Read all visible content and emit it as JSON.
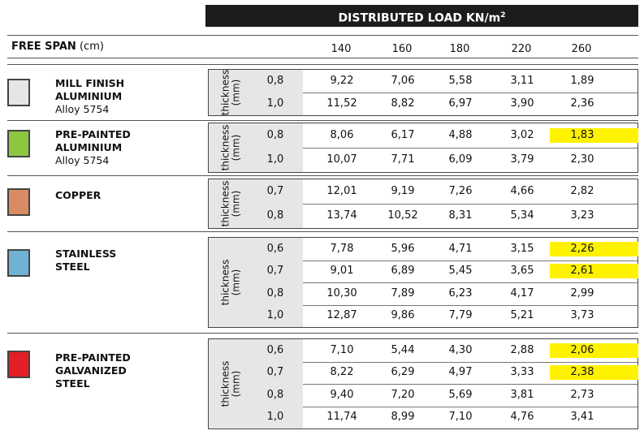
{
  "header": {
    "title": "DISTRIBUTED LOAD KN/m",
    "unit_sup": "2"
  },
  "span": {
    "label": "FREE SPAN",
    "unit": "(cm)",
    "columns": [
      "140",
      "160",
      "180",
      "220",
      "260"
    ]
  },
  "thickness_label_1": "thickness",
  "thickness_label_2": "(mm)",
  "materials": [
    {
      "name_lines": [
        "MILL FINISH",
        "ALUMINIUM"
      ],
      "alloy": "Alloy 5754",
      "color": "#e6e6e6",
      "rows": [
        {
          "t": "0,8",
          "values": [
            "9,22",
            "7,06",
            "5,58",
            "3,11",
            "1,89"
          ],
          "highlight": false
        },
        {
          "t": "1,0",
          "values": [
            "11,52",
            "8,82",
            "6,97",
            "3,90",
            "2,36"
          ],
          "highlight": false
        }
      ]
    },
    {
      "name_lines": [
        "PRE-PAINTED",
        "ALUMINIUM"
      ],
      "alloy": "Alloy 5754",
      "color": "#8dc63f",
      "rows": [
        {
          "t": "0,8",
          "values": [
            "8,06",
            "6,17",
            "4,88",
            "3,02",
            "1,83"
          ],
          "highlight": true
        },
        {
          "t": "1,0",
          "values": [
            "10,07",
            "7,71",
            "6,09",
            "3,79",
            "2,30"
          ],
          "highlight": false
        }
      ]
    },
    {
      "name_lines": [
        "COPPER"
      ],
      "alloy": "",
      "color": "#d98b63",
      "rows": [
        {
          "t": "0,7",
          "values": [
            "12,01",
            "9,19",
            "7,26",
            "4,66",
            "2,82"
          ],
          "highlight": false
        },
        {
          "t": "0,8",
          "values": [
            "13,74",
            "10,52",
            "8,31",
            "5,34",
            "3,23"
          ],
          "highlight": false
        }
      ]
    },
    {
      "name_lines": [
        "STAINLESS",
        "STEEL"
      ],
      "alloy": "",
      "color": "#6fb2d4",
      "rows": [
        {
          "t": "0,6",
          "values": [
            "7,78",
            "5,96",
            "4,71",
            "3,15",
            "2,26"
          ],
          "highlight": true
        },
        {
          "t": "0,7",
          "values": [
            "9,01",
            "6,89",
            "5,45",
            "3,65",
            "2,61"
          ],
          "highlight": true
        },
        {
          "t": "0,8",
          "values": [
            "10,30",
            "7,89",
            "6,23",
            "4,17",
            "2,99"
          ],
          "highlight": false
        },
        {
          "t": "1,0",
          "values": [
            "12,87",
            "9,86",
            "7,79",
            "5,21",
            "3,73"
          ],
          "highlight": false
        }
      ]
    },
    {
      "name_lines": [
        "PRE-PAINTED",
        "GALVANIZED",
        "STEEL"
      ],
      "alloy": "",
      "color": "#e31e24",
      "rows": [
        {
          "t": "0,6",
          "values": [
            "7,10",
            "5,44",
            "4,30",
            "2,88",
            "2,06"
          ],
          "highlight": true
        },
        {
          "t": "0,7",
          "values": [
            "8,22",
            "6,29",
            "4,97",
            "3,33",
            "2,38"
          ],
          "highlight": true
        },
        {
          "t": "0,8",
          "values": [
            "9,40",
            "7,20",
            "5,69",
            "3,81",
            "2,73"
          ],
          "highlight": false
        },
        {
          "t": "1,0",
          "values": [
            "11,74",
            "8,99",
            "7,10",
            "4,76",
            "3,41"
          ],
          "highlight": false
        }
      ]
    }
  ]
}
